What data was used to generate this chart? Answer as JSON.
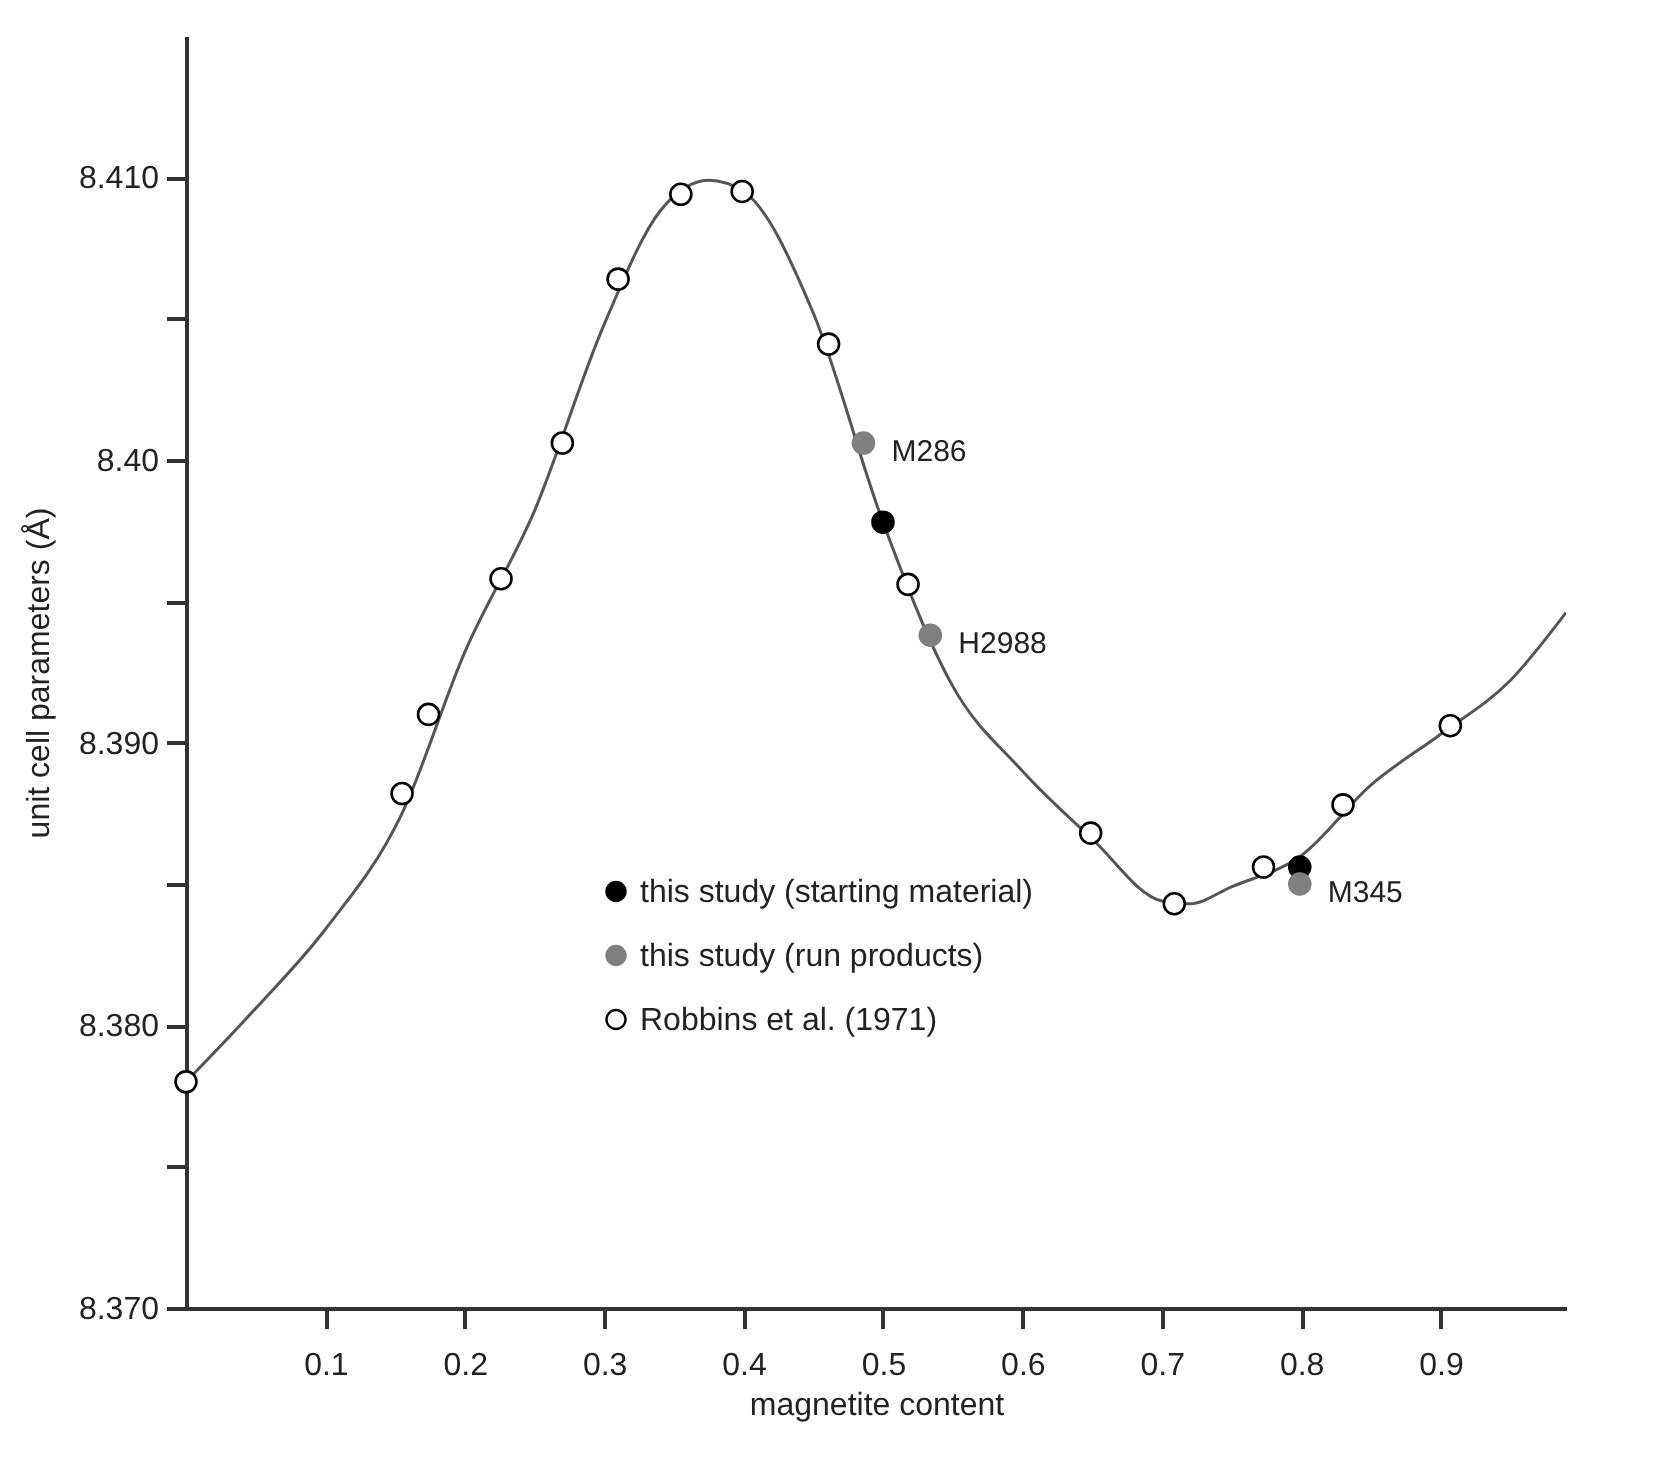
{
  "chart_data": {
    "type": "scatter",
    "xlabel": "magnetite content",
    "ylabel": "unit cell parameters (Å)",
    "xlim": [
      0,
      0.99
    ],
    "ylim": [
      8.37,
      8.415
    ],
    "xticks": [
      0.1,
      0.2,
      0.3,
      0.4,
      0.5,
      0.6,
      0.7,
      0.8,
      0.9
    ],
    "yticks": [
      {
        "value": 8.37,
        "label": "8.370"
      },
      {
        "value": 8.375,
        "label": null
      },
      {
        "value": 8.38,
        "label": "8.380"
      },
      {
        "value": 8.385,
        "label": null
      },
      {
        "value": 8.39,
        "label": "8.390"
      },
      {
        "value": 8.395,
        "label": null
      },
      {
        "value": 8.4,
        "label": "8.40"
      },
      {
        "value": 8.405,
        "label": null
      },
      {
        "value": 8.41,
        "label": "8.410"
      }
    ],
    "grid": false,
    "legend": "bottom",
    "marker": "circle",
    "series": [
      {
        "type": "line",
        "marker": "none",
        "color": "#555555",
        "x": [
          0,
          0.05,
          0.1,
          0.155,
          0.2,
          0.25,
          0.3,
          0.34,
          0.375,
          0.4,
          0.45,
          0.5,
          0.55,
          0.6,
          0.65,
          0.7,
          0.72,
          0.75,
          0.8,
          0.85,
          0.9,
          0.95,
          0.99
        ],
        "values": [
          8.378,
          8.3806,
          8.3834,
          8.3875,
          8.3932,
          8.3982,
          8.4048,
          8.4088,
          8.4099,
          8.4095,
          8.4052,
          8.3978,
          8.392,
          8.389,
          8.3866,
          8.3844,
          8.3843,
          8.3849,
          8.386,
          8.3885,
          8.3903,
          8.3922,
          8.3946
        ]
      },
      {
        "name": "this study (starting material)",
        "color": "#000000",
        "x": [
          0.5,
          0.799
        ],
        "values": [
          8.3978,
          8.3856
        ]
      },
      {
        "name": "this study (run products)",
        "color": "#808080",
        "x": [
          0.486,
          0.534,
          0.799
        ],
        "values": [
          8.4006,
          8.3938,
          8.385
        ]
      },
      {
        "name": "Robbins et al. (1971)",
        "color": "#ffffff",
        "x": [
          0,
          0.155,
          0.174,
          0.226,
          0.27,
          0.31,
          0.355,
          0.399,
          0.461,
          0.518,
          0.649,
          0.709,
          0.773,
          0.83,
          0.907
        ],
        "values": [
          8.378,
          8.3882,
          8.391,
          8.3958,
          8.4006,
          8.4064,
          8.4094,
          8.4095,
          8.4041,
          8.3956,
          8.3868,
          8.3843,
          8.3856,
          8.3878,
          8.3906
        ]
      }
    ],
    "annotations": [
      {
        "text": "M286",
        "x": 0.486,
        "y": 8.4006
      },
      {
        "text": "H2988",
        "x": 0.534,
        "y": 8.3938
      },
      {
        "text": "M345",
        "x": 0.799,
        "y": 8.385
      }
    ]
  }
}
